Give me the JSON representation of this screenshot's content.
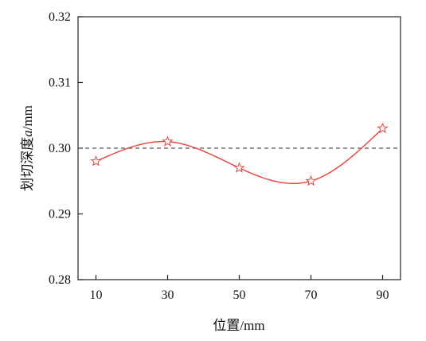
{
  "chart_data": {
    "type": "line",
    "x": [
      10,
      30,
      50,
      70,
      90
    ],
    "series": [
      {
        "values": [
          0.298,
          0.301,
          0.297,
          0.295,
          0.303
        ]
      }
    ],
    "xticks": [
      "10",
      "30",
      "50",
      "70",
      "90"
    ],
    "yticks": [
      "0.28",
      "0.29",
      "0.30",
      "0.31",
      "0.32"
    ],
    "xlabel": "位置/mm",
    "ylabel_parts": {
      "pre": "划切深度",
      "var": "a",
      "post": "/mm"
    },
    "xlim": [
      5,
      95
    ],
    "ylim": [
      0.28,
      0.32
    ],
    "reference_line": {
      "y": 0.3,
      "style": "dashed"
    },
    "grid": false,
    "marker": "star-outline",
    "colors": {
      "line": "#e8423a",
      "marker_stroke": "#e8423a",
      "reference": "#555555"
    }
  }
}
